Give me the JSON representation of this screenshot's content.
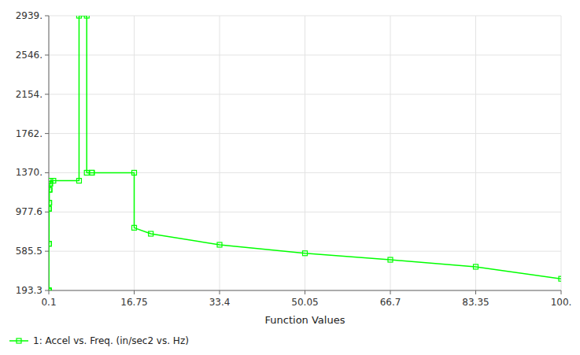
{
  "chart_data": {
    "type": "line",
    "xlabel": "Function Values",
    "x": [
      0.1,
      0.1,
      0.12,
      0.12,
      0.14,
      0.14,
      0.16,
      0.16,
      0.2,
      0.2,
      0.28,
      0.28,
      0.4,
      0.4,
      1.0,
      6.0,
      6.0,
      7.5,
      7.5,
      8.5,
      8.5,
      16.75,
      16.75,
      20.0,
      33.4,
      50.05,
      66.7,
      83.35,
      100.0
    ],
    "series": [
      {
        "name": "1: Accel vs. Freq. (in/sec2 vs. Hz)",
        "color": "#00ff00",
        "marker": "square",
        "values": [
          193.3,
          193.3,
          193.3,
          1010.0,
          1010.0,
          660.0,
          660.0,
          1070.0,
          1070.0,
          1200.0,
          1200.0,
          1260.0,
          1260.0,
          1290.0,
          1290.0,
          1290.0,
          2939.0,
          2939.0,
          1370.0,
          1370.0,
          1370.0,
          1370.0,
          820.0,
          760.0,
          650.0,
          565.0,
          500.0,
          430.0,
          310.0
        ]
      }
    ],
    "xlim": [
      0.1,
      100.0
    ],
    "ylim": [
      193.3,
      2939.0
    ],
    "xticks": [
      0.1,
      16.75,
      33.4,
      50.05,
      66.7,
      83.35,
      {
        "value": 100.0,
        "label": "100."
      }
    ],
    "yticks": [
      193.3,
      585.5,
      977.6,
      {
        "value": 1370.0,
        "label": "1370."
      },
      {
        "value": 1762.0,
        "label": "1762."
      },
      {
        "value": 2154.0,
        "label": "2154."
      },
      {
        "value": 2546.0,
        "label": "2546."
      },
      {
        "value": 2939.0,
        "label": "2939."
      }
    ],
    "grid": true,
    "legend": "lower left"
  }
}
